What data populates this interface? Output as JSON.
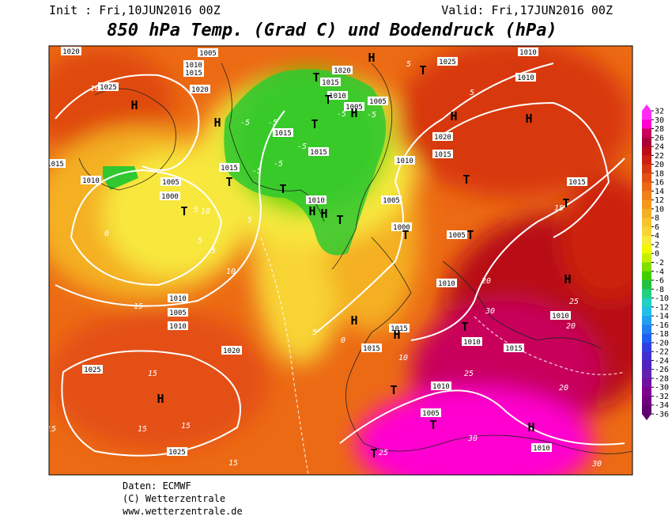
{
  "header": {
    "init": "Init : Fri,10JUN2016 00Z",
    "valid": "Valid: Fri,17JUN2016 00Z",
    "title": "850 hPa Temp. (Grad C) und Bodendruck (hPa)"
  },
  "colorbar": {
    "ticks": [
      32,
      30,
      28,
      26,
      24,
      22,
      20,
      18,
      16,
      14,
      12,
      10,
      8,
      6,
      4,
      2,
      0,
      -2,
      -4,
      -6,
      -8,
      -10,
      -12,
      -14,
      -16,
      -18,
      -20,
      -22,
      -24,
      -26,
      -28,
      -30,
      -32,
      -34,
      -36
    ],
    "colors": [
      "#ff2cf8",
      "#ff00d0",
      "#c8005c",
      "#a80038",
      "#b80c18",
      "#cc2010",
      "#d83810",
      "#e45014",
      "#ec6814",
      "#f08018",
      "#f4981c",
      "#f4b024",
      "#f8c42c",
      "#f8d434",
      "#f8e83c",
      "#f0f800",
      "#c4f000",
      "#80e000",
      "#40d000",
      "#20c040",
      "#20d080",
      "#20d0c0",
      "#20c0e8",
      "#20a0f0",
      "#2080f0",
      "#2060f0",
      "#3040e0",
      "#4030d0",
      "#5020c0",
      "#6020b0",
      "#7010a0",
      "#800090",
      "#700080",
      "#600070"
    ]
  },
  "map": {
    "pressure_labels": [
      "1020",
      "1005",
      "1010",
      "1015",
      "1025",
      "1020",
      "1015",
      "1020",
      "1010",
      "1005",
      "1015",
      "1015",
      "1010",
      "1005",
      "1000",
      "1015",
      "1010",
      "1005",
      "1015",
      "1010",
      "1005",
      "1000",
      "1010",
      "1005",
      "1010",
      "1005",
      "1010",
      "1015",
      "1020",
      "1025",
      "1025",
      "1010",
      "1015",
      "1010",
      "1015",
      "1010",
      "1005",
      "1010",
      "1025",
      "1020",
      "1015",
      "1015",
      "1010",
      "1010"
    ],
    "temp_labels": [
      "10",
      "-5",
      "-5",
      "-5",
      "-5",
      "-5",
      "-5",
      "-5",
      "5",
      "0",
      "5",
      "5",
      "10",
      "15",
      "5",
      "0",
      "5",
      "5",
      "10",
      "15",
      "15",
      "15",
      "20",
      "20",
      "25",
      "25",
      "30",
      "30",
      "20",
      "25",
      "30",
      "15",
      "15",
      "15",
      "10",
      "5"
    ],
    "centers": [
      "H",
      "T",
      "H",
      "T",
      "T",
      "H",
      "T",
      "T",
      "H",
      "T",
      "H",
      "H",
      "T",
      "T",
      "H",
      "T",
      "T",
      "T",
      "H",
      "H",
      "T",
      "H",
      "H",
      "T",
      "T",
      "H",
      "T",
      "T",
      "H"
    ]
  },
  "footer": {
    "lines": [
      "Daten: ECMWF",
      "(C) Wetterzentrale",
      "www.wetterzentrale.de"
    ]
  }
}
